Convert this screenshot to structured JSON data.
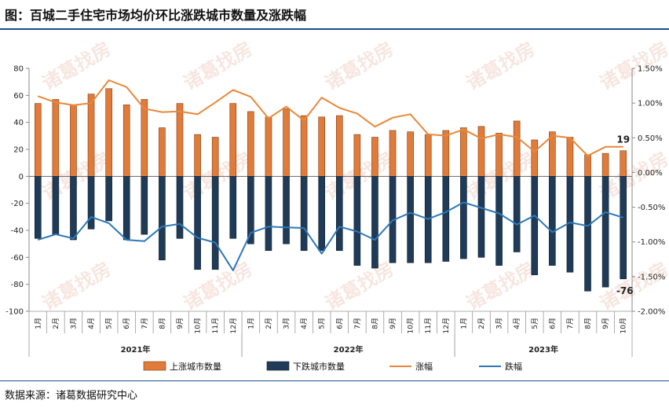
{
  "title": "图：百城二手住宅市场均价环比涨跌城市数量及涨跌幅",
  "source": "数据来源：诸葛数据研究中心",
  "watermark": "诸葛找房",
  "colors": {
    "up_bar": "#e07b39",
    "down_bar": "#1f3b57",
    "up_line": "#e8883a",
    "down_line": "#2e78b8",
    "accent": "#1e4d8c"
  },
  "chart_data": {
    "type": "bar",
    "categories": [
      "1月",
      "2月",
      "3月",
      "4月",
      "5月",
      "6月",
      "7月",
      "8月",
      "9月",
      "10月",
      "11月",
      "12月",
      "1月",
      "2月",
      "3月",
      "4月",
      "5月",
      "6月",
      "7月",
      "8月",
      "9月",
      "10月",
      "11月",
      "12月",
      "1月",
      "2月",
      "3月",
      "4月",
      "5月",
      "6月",
      "7月",
      "8月",
      "9月",
      "10月"
    ],
    "years": [
      {
        "label": "2021年",
        "start": 0,
        "end": 11
      },
      {
        "label": "2022年",
        "start": 12,
        "end": 23
      },
      {
        "label": "2023年",
        "start": 24,
        "end": 33
      }
    ],
    "series": [
      {
        "name": "上涨城市数量",
        "kind": "bar",
        "axis": "left",
        "values": [
          54,
          57,
          53,
          61,
          65,
          53,
          57,
          36,
          54,
          31,
          29,
          54,
          48,
          44,
          50,
          45,
          44,
          45,
          31,
          29,
          34,
          33,
          31,
          34,
          36,
          37,
          32,
          41,
          27,
          33,
          29,
          16,
          17,
          19
        ]
      },
      {
        "name": "下跌城市数量",
        "kind": "bar",
        "axis": "left",
        "values": [
          -46,
          -43,
          -47,
          -39,
          -33,
          -47,
          -43,
          -62,
          -46,
          -69,
          -69,
          -46,
          -50,
          -55,
          -50,
          -55,
          -55,
          -55,
          -66,
          -68,
          -64,
          -64,
          -64,
          -63,
          -61,
          -60,
          -66,
          -56,
          -73,
          -66,
          -71,
          -85,
          -82,
          -76
        ]
      },
      {
        "name": "涨幅",
        "kind": "line",
        "axis": "right",
        "values": [
          1.1,
          1.01,
          0.97,
          1.0,
          1.33,
          1.23,
          0.92,
          0.87,
          0.88,
          0.84,
          1.01,
          1.19,
          1.09,
          0.78,
          0.95,
          0.75,
          1.08,
          0.93,
          0.85,
          0.66,
          0.79,
          0.84,
          0.55,
          0.53,
          0.62,
          0.49,
          0.55,
          0.51,
          0.3,
          0.53,
          0.5,
          0.24,
          0.37,
          0.37
        ]
      },
      {
        "name": "跌幅",
        "kind": "line",
        "axis": "right",
        "values": [
          -0.97,
          -0.89,
          -0.95,
          -0.64,
          -0.73,
          -0.97,
          -0.99,
          -0.78,
          -0.74,
          -0.94,
          -1.01,
          -1.41,
          -0.87,
          -0.78,
          -0.79,
          -0.8,
          -1.17,
          -0.78,
          -0.85,
          -0.97,
          -0.69,
          -0.58,
          -0.67,
          -0.57,
          -0.43,
          -0.51,
          -0.59,
          -0.75,
          -0.62,
          -0.86,
          -0.72,
          -0.77,
          -0.57,
          -0.65
        ]
      }
    ],
    "ylim_left": [
      -100,
      80
    ],
    "yticks_left": [
      "80",
      "60",
      "40",
      "20",
      "0",
      "-20",
      "-40",
      "-60",
      "-80",
      "-100"
    ],
    "ylim_right": [
      -2.0,
      1.5
    ],
    "yticks_right": [
      "1.50%",
      "1.00%",
      "0.50%",
      "0.00%",
      "-0.50%",
      "-1.00%",
      "-1.50%",
      "-2.00%"
    ],
    "annotations": [
      {
        "index": 33,
        "series": "上涨城市数量",
        "text": "19"
      },
      {
        "index": 33,
        "series": "下跌城市数量",
        "text": "-76"
      }
    ],
    "legend": [
      "上涨城市数量",
      "下跌城市数量",
      "涨幅",
      "跌幅"
    ],
    "legend_position": "bottom"
  }
}
